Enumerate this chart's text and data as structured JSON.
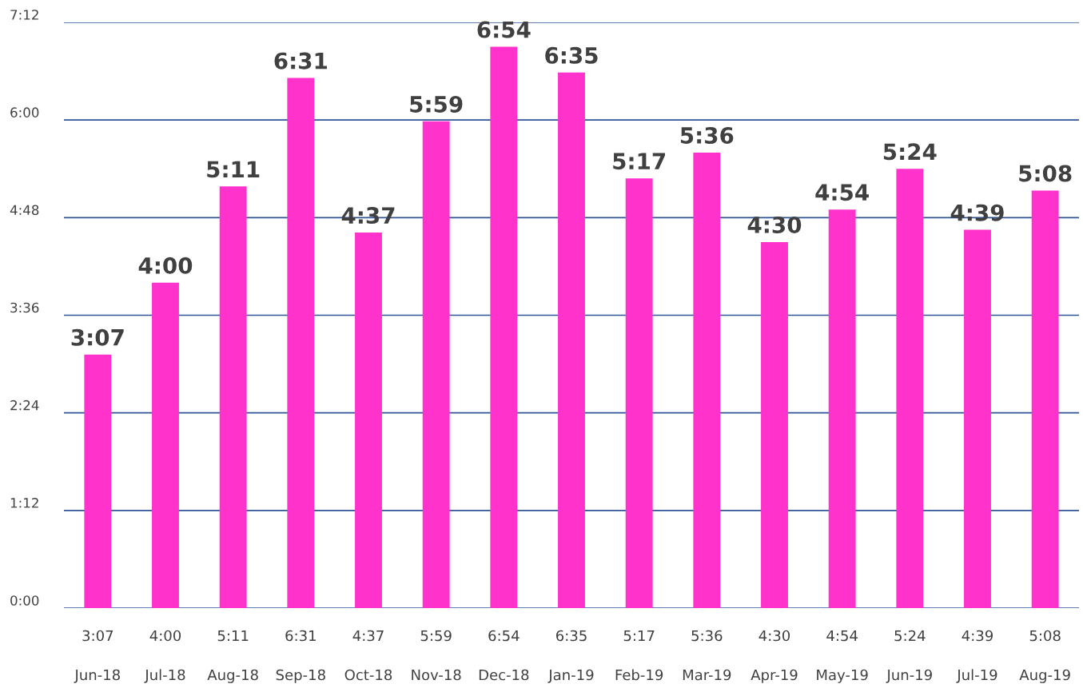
{
  "chart_data": {
    "type": "bar",
    "categories": [
      "Jun-18",
      "Jul-18",
      "Aug-18",
      "Sep-18",
      "Oct-18",
      "Nov-18",
      "Dec-18",
      "Jan-19",
      "Feb-19",
      "Mar-19",
      "Apr-19",
      "May-19",
      "Jun-19",
      "Jul-19",
      "Aug-19"
    ],
    "values": [
      3.1167,
      4.0,
      5.1833,
      6.5167,
      4.6167,
      5.9833,
      6.9,
      6.5833,
      5.2833,
      5.6,
      4.5,
      4.9,
      5.4,
      4.65,
      5.1333
    ],
    "value_labels": [
      "3:07",
      "4:00",
      "5:11",
      "6:31",
      "4:37",
      "5:59",
      "6:54",
      "6:35",
      "5:17",
      "5:36",
      "4:30",
      "4:54",
      "5:24",
      "4:39",
      "5:08"
    ],
    "color": "#ff33cc",
    "ylim": [
      0,
      7.2
    ],
    "yticks": [
      {
        "value": 0,
        "label": "0:00"
      },
      {
        "value": 1.2,
        "label": "1:12"
      },
      {
        "value": 2.4,
        "label": "2:24"
      },
      {
        "value": 3.6,
        "label": "3:36"
      },
      {
        "value": 4.8,
        "label": "4:48"
      },
      {
        "value": 6.0,
        "label": "6:00"
      },
      {
        "value": 7.2,
        "label": "7:12"
      }
    ],
    "grid": "y",
    "legend": false
  }
}
